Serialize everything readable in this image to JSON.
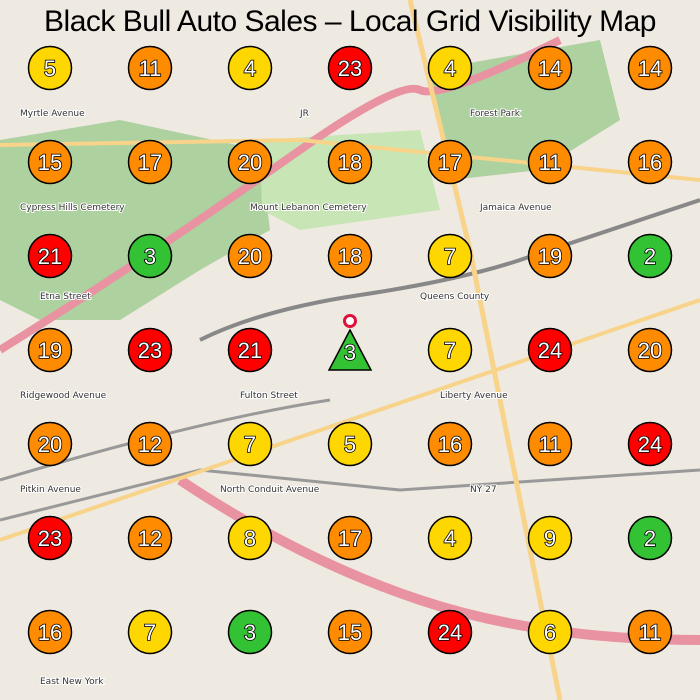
{
  "title": "Black Bull Auto Sales – Local Grid Visibility Map",
  "colors": {
    "green": "#33c233",
    "yellow": "#ffd700",
    "orange": "#ff8c00",
    "red": "#ff0000",
    "land": "#f2efe9",
    "park": "#aed1a0",
    "highway": "#e892a2",
    "road": "#f8d38a"
  },
  "rank_thresholds": {
    "green_max": 3,
    "yellow_max": 10,
    "orange_max": 20
  },
  "grid": [
    [
      5,
      11,
      4,
      23,
      4,
      14,
      14
    ],
    [
      15,
      17,
      20,
      18,
      17,
      11,
      16
    ],
    [
      21,
      3,
      20,
      18,
      7,
      19,
      2
    ],
    [
      19,
      23,
      21,
      3,
      7,
      24,
      20
    ],
    [
      20,
      12,
      7,
      5,
      16,
      11,
      24
    ],
    [
      23,
      12,
      8,
      17,
      4,
      9,
      2
    ],
    [
      16,
      7,
      3,
      15,
      24,
      6,
      11
    ]
  ],
  "business_marker": {
    "row": 3,
    "col": 3,
    "rank": 3,
    "icon": "triangle-pin-icon"
  },
  "street_labels": [
    "Myrtle Avenue",
    "Jamaica Avenue",
    "Cypress Hills Cemetery",
    "Mount Lebanon Cemetery",
    "Forest Park",
    "Etna Street",
    "Ridgewood Avenue",
    "Fulton Street",
    "Liberty Avenue",
    "North Conduit Avenue",
    "Pitkin Avenue",
    "East New York",
    "Queens County",
    "NY 27",
    "JR"
  ]
}
